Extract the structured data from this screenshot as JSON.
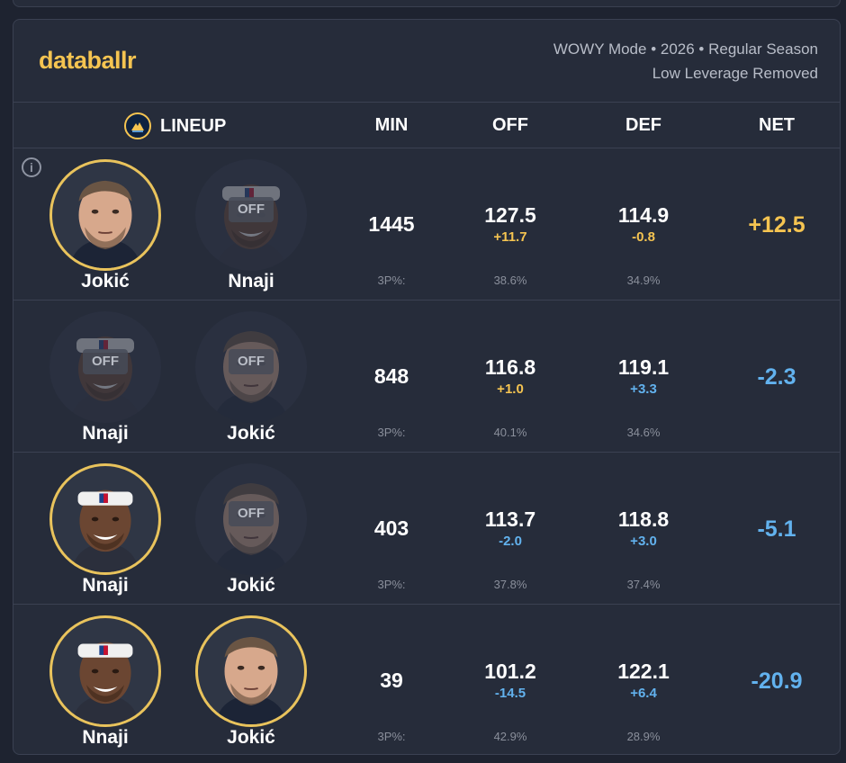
{
  "header": {
    "logo": "databallr",
    "mode_line1": "WOWY Mode • 2026 • Regular Season",
    "mode_line2": "Low Leverage Removed"
  },
  "columns": {
    "lineup": "LINEUP",
    "min": "MIN",
    "off": "OFF",
    "def": "DEF",
    "net": "NET"
  },
  "off_badge": "OFF",
  "rows": [
    {
      "p1": {
        "name": "Jokić",
        "status": "on"
      },
      "p2": {
        "name": "Nnaji",
        "status": "off"
      },
      "min": "1445",
      "off": "127.5",
      "off_delta": "+11.7",
      "def": "114.9",
      "def_delta": "-0.8",
      "net": "+12.5",
      "three_label": "3P%:",
      "off_3p": "38.6%",
      "def_3p": "34.9%"
    },
    {
      "p1": {
        "name": "Nnaji",
        "status": "off"
      },
      "p2": {
        "name": "Jokić",
        "status": "off"
      },
      "min": "848",
      "off": "116.8",
      "off_delta": "+1.0",
      "def": "119.1",
      "def_delta": "+3.3",
      "net": "-2.3",
      "three_label": "3P%:",
      "off_3p": "40.1%",
      "def_3p": "34.6%"
    },
    {
      "p1": {
        "name": "Nnaji",
        "status": "on"
      },
      "p2": {
        "name": "Jokić",
        "status": "off"
      },
      "min": "403",
      "off": "113.7",
      "off_delta": "-2.0",
      "def": "118.8",
      "def_delta": "+3.0",
      "net": "-5.1",
      "three_label": "3P%:",
      "off_3p": "37.8%",
      "def_3p": "37.4%"
    },
    {
      "p1": {
        "name": "Nnaji",
        "status": "on"
      },
      "p2": {
        "name": "Jokić",
        "status": "on"
      },
      "min": "39",
      "off": "101.2",
      "off_delta": "-14.5",
      "def": "122.1",
      "def_delta": "+6.4",
      "net": "-20.9",
      "three_label": "3P%:",
      "off_3p": "42.9%",
      "def_3p": "28.9%"
    }
  ],
  "colors": {
    "accent_gold": "#f5c451",
    "positive_blue": "#62b2ee",
    "card_bg": "#262c3a"
  }
}
